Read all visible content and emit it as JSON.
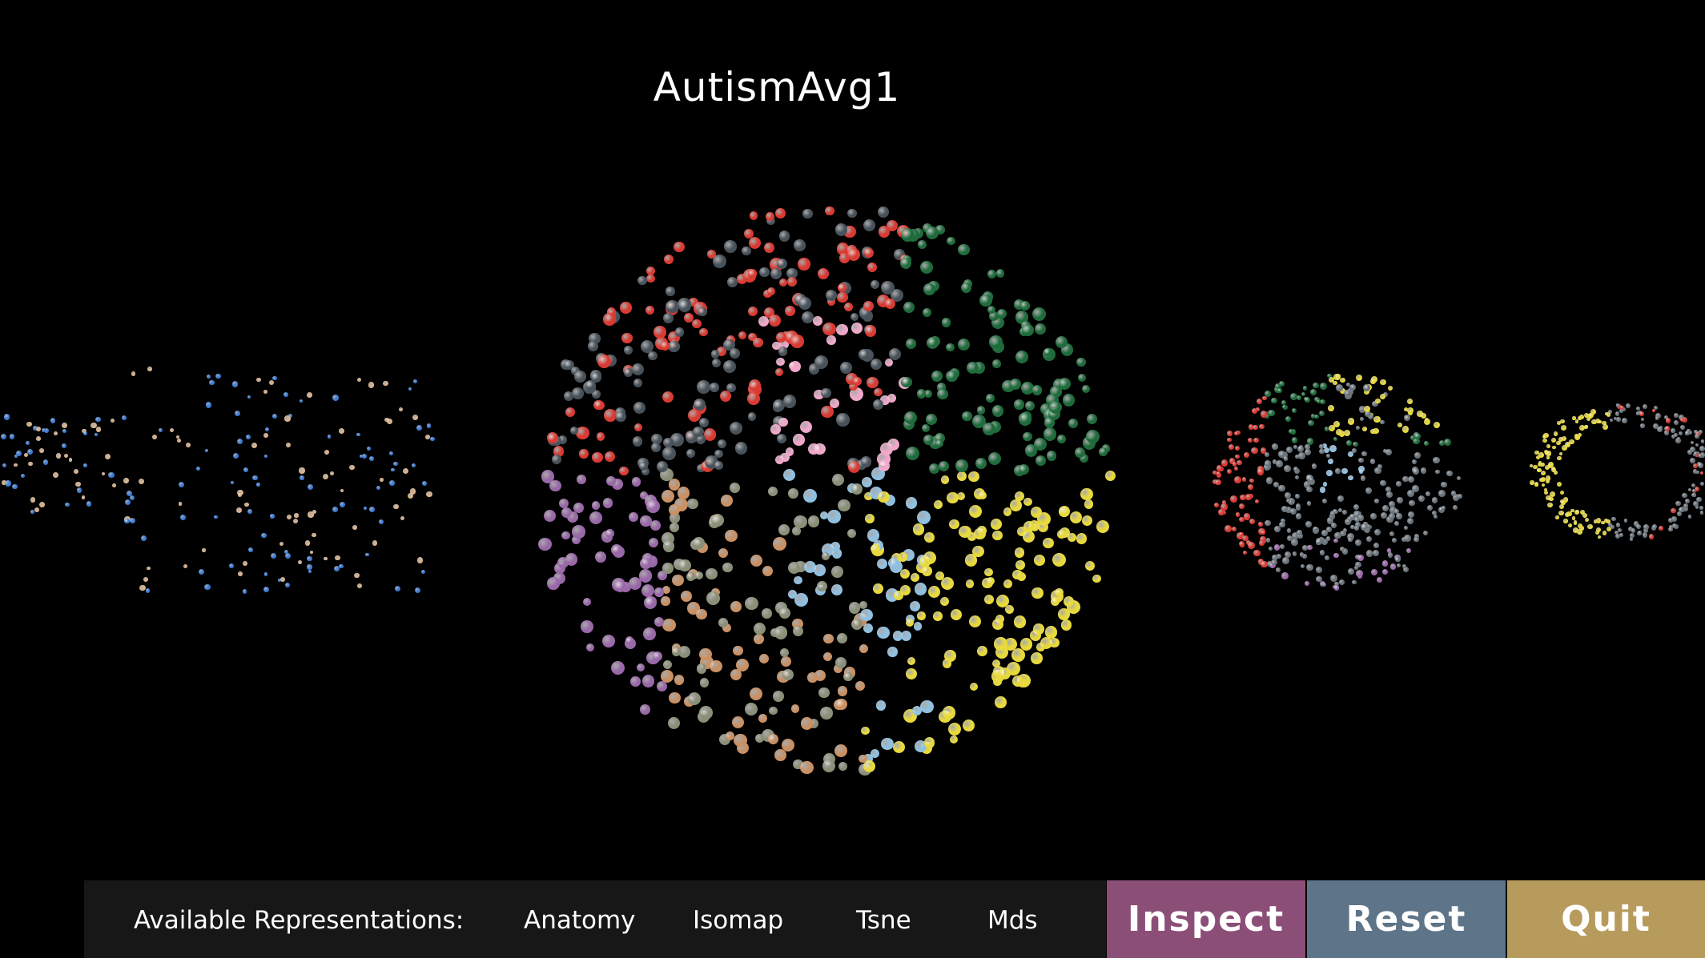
{
  "window": {
    "title": "AutismAvg1"
  },
  "clouds": [
    {
      "name": "left-cloud",
      "style": "flat",
      "colors": [
        "#3a7bd5",
        "#d9b38c"
      ]
    },
    {
      "name": "center-cloud",
      "style": "sphere",
      "colors": [
        "#d93a32",
        "#48525a",
        "#1f6b3c",
        "#f0a7c9",
        "#9968a8",
        "#c99063",
        "#8a8f78",
        "#90c0e0",
        "#e8d93c"
      ]
    },
    {
      "name": "right-cloud",
      "style": "small",
      "colors": [
        "#d93a32",
        "#1f6b3c",
        "#e8d93c",
        "#90c0e0",
        "#9968a8",
        "#68727a"
      ]
    },
    {
      "name": "far-right-cloud",
      "style": "edge",
      "colors": [
        "#e8d93c",
        "#68727a",
        "#d93a32"
      ]
    }
  ],
  "bottom_bar": {
    "label": "Available Representations:",
    "options": [
      "Anatomy",
      "Isomap",
      "Tsne",
      "Mds"
    ]
  },
  "buttons": {
    "inspect": "Inspect",
    "reset": "Reset",
    "quit": "Quit"
  },
  "colors": {
    "background": "#000000",
    "bar": "#171717",
    "inspect": "#8b4f77",
    "reset": "#5e7488",
    "quit": "#b69b5c"
  }
}
